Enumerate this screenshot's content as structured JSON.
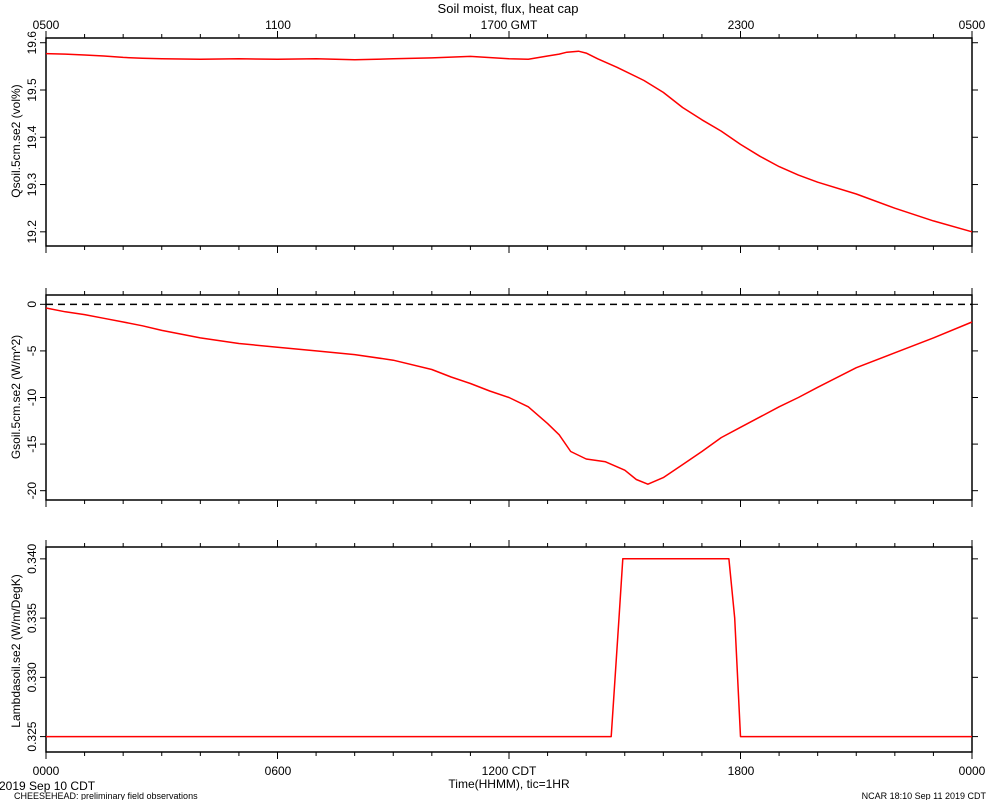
{
  "title": "Soil moist, flux, heat cap",
  "top_axis": {
    "tick_labels": [
      "0500",
      "1100",
      "1700 GMT",
      "2300",
      "0500"
    ]
  },
  "bottom_axis": {
    "tick_labels": [
      "0000",
      "0600",
      "1200 CDT",
      "1800",
      "0000"
    ],
    "label": "Time(HHMM), tic=1HR"
  },
  "footer": {
    "date_label": "2019 Sep 10 CDT",
    "project_note": "CHEESEHEAD: preliminary field observations",
    "stamp": "NCAR 18:10 Sep 11 2019 CDT"
  },
  "colors": {
    "series": "#ff0000",
    "axes": "#000000",
    "zero_line": "#000000"
  },
  "chart_data": [
    {
      "type": "line",
      "ylabel": "Qsoil.5cm.se2 (vol%)",
      "ylim": [
        19.17,
        19.61
      ],
      "yticks": [
        19.2,
        19.3,
        19.4,
        19.5,
        19.6
      ],
      "xlim": [
        0,
        24
      ],
      "x_units": "hours since 0000 CDT",
      "series": [
        {
          "x": [
            0,
            0.5,
            1,
            1.5,
            2,
            2.5,
            3,
            4,
            5,
            6,
            7,
            8,
            9,
            10,
            11,
            12,
            12.5,
            13,
            13.3,
            13.5,
            13.8,
            14,
            14.3,
            14.8,
            15.5,
            16,
            16.5,
            17,
            17.5,
            18,
            18.5,
            19,
            19.5,
            20,
            21,
            22,
            23,
            24
          ],
          "y": [
            19.577,
            19.576,
            19.574,
            19.572,
            19.569,
            19.567,
            19.566,
            19.565,
            19.566,
            19.565,
            19.566,
            19.564,
            19.566,
            19.568,
            19.571,
            19.566,
            19.565,
            19.572,
            19.576,
            19.58,
            19.582,
            19.578,
            19.566,
            19.548,
            19.52,
            19.495,
            19.463,
            19.437,
            19.413,
            19.385,
            19.36,
            19.338,
            19.32,
            19.305,
            19.28,
            19.25,
            19.223,
            19.2
          ]
        }
      ]
    },
    {
      "type": "line",
      "ylabel": "Gsoil.5cm.se2 (W/m^2)",
      "ylim": [
        -21,
        1
      ],
      "yticks": [
        0,
        -5,
        -10,
        -15,
        -20
      ],
      "xlim": [
        0,
        24
      ],
      "reference_line": 0,
      "series": [
        {
          "x": [
            0,
            0.5,
            1,
            1.5,
            2,
            2.5,
            3,
            4,
            5,
            6,
            7,
            8,
            9,
            10,
            10.5,
            11,
            11.5,
            12,
            12.5,
            13,
            13.3,
            13.6,
            14,
            14.5,
            15,
            15.3,
            15.6,
            16,
            16.5,
            17,
            17.5,
            18,
            18.5,
            19,
            19.5,
            20,
            21,
            22,
            23,
            24
          ],
          "y": [
            -0.4,
            -0.8,
            -1.1,
            -1.5,
            -1.9,
            -2.3,
            -2.8,
            -3.6,
            -4.2,
            -4.6,
            -5.0,
            -5.4,
            -6.0,
            -7.0,
            -7.8,
            -8.5,
            -9.3,
            -10.0,
            -11.0,
            -12.8,
            -14.0,
            -15.8,
            -16.6,
            -16.9,
            -17.8,
            -18.8,
            -19.3,
            -18.6,
            -17.2,
            -15.8,
            -14.3,
            -13.2,
            -12.1,
            -11.0,
            -10.0,
            -8.9,
            -6.8,
            -5.2,
            -3.6,
            -1.9
          ]
        }
      ]
    },
    {
      "type": "line",
      "ylabel": "Lambdasoil.se2 (W/m/DegK)",
      "ylim": [
        0.3237,
        0.341
      ],
      "yticks": [
        0.325,
        0.33,
        0.335,
        0.34
      ],
      "xlim": [
        0,
        24
      ],
      "series": [
        {
          "x": [
            0,
            14.65,
            14.85,
            14.95,
            17.7,
            17.85,
            18.0,
            24
          ],
          "y": [
            0.325,
            0.325,
            0.335,
            0.34,
            0.34,
            0.335,
            0.325,
            0.325
          ]
        }
      ]
    }
  ]
}
